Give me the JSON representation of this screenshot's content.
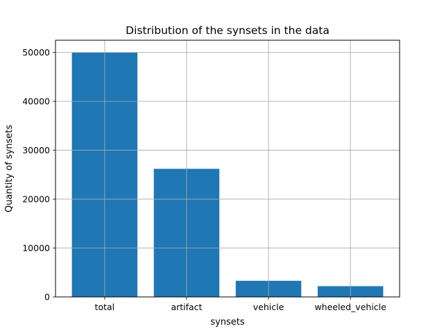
{
  "chart_data": {
    "type": "bar",
    "title": "Distribution of the synsets in the data",
    "xlabel": "synsets",
    "ylabel": "Quantity of synsets",
    "categories": [
      "total",
      "artifact",
      "vehicle",
      "wheeled_vehicle"
    ],
    "values": [
      50000,
      26200,
      3300,
      2200
    ],
    "ylim": [
      0,
      52500
    ],
    "yticks": [
      0,
      10000,
      20000,
      30000,
      40000,
      50000
    ],
    "grid": true,
    "bar_color": "#1f77b4"
  }
}
